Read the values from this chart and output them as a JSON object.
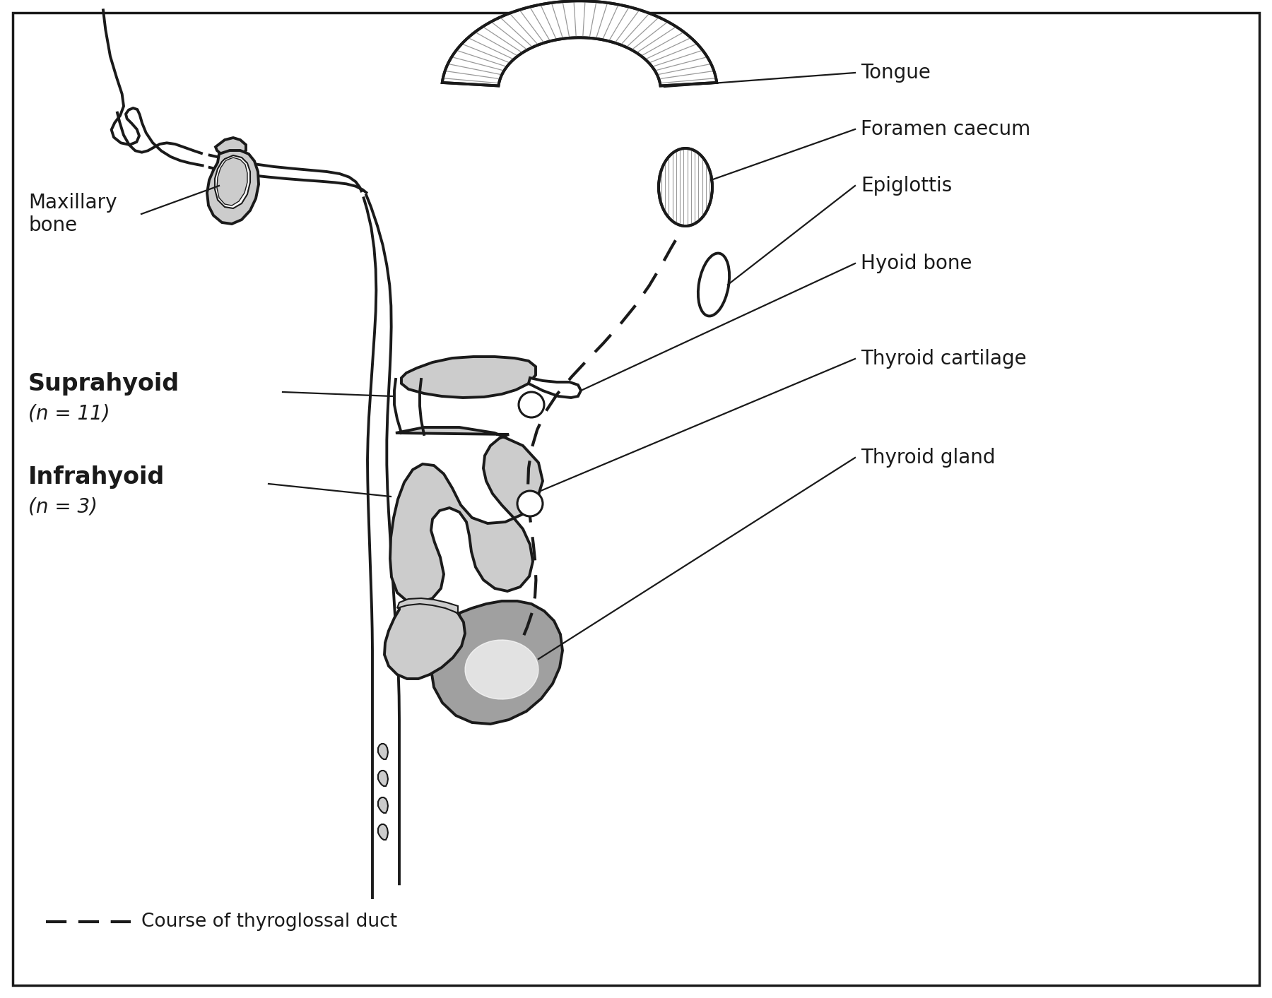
{
  "bg_color": "#ffffff",
  "border_color": "#000000",
  "line_color": "#1a1a1a",
  "gray_fill": "#b8b8b8",
  "light_gray": "#cccccc",
  "mid_gray": "#a0a0a0",
  "dark_gray": "#888888",
  "ann_fontsize": 20,
  "label_fontsize": 24,
  "legend_fontsize": 19,
  "suprahyoid_text": "Suprahyoid",
  "suprahyoid_n": "(n = 11)",
  "infrahyoid_text": "Infrahyoid",
  "infrahyoid_n": "(n = 3)",
  "maxillary_label": "Maxillary\nbone",
  "legend_line": "---- Course of thyroglossal duct"
}
